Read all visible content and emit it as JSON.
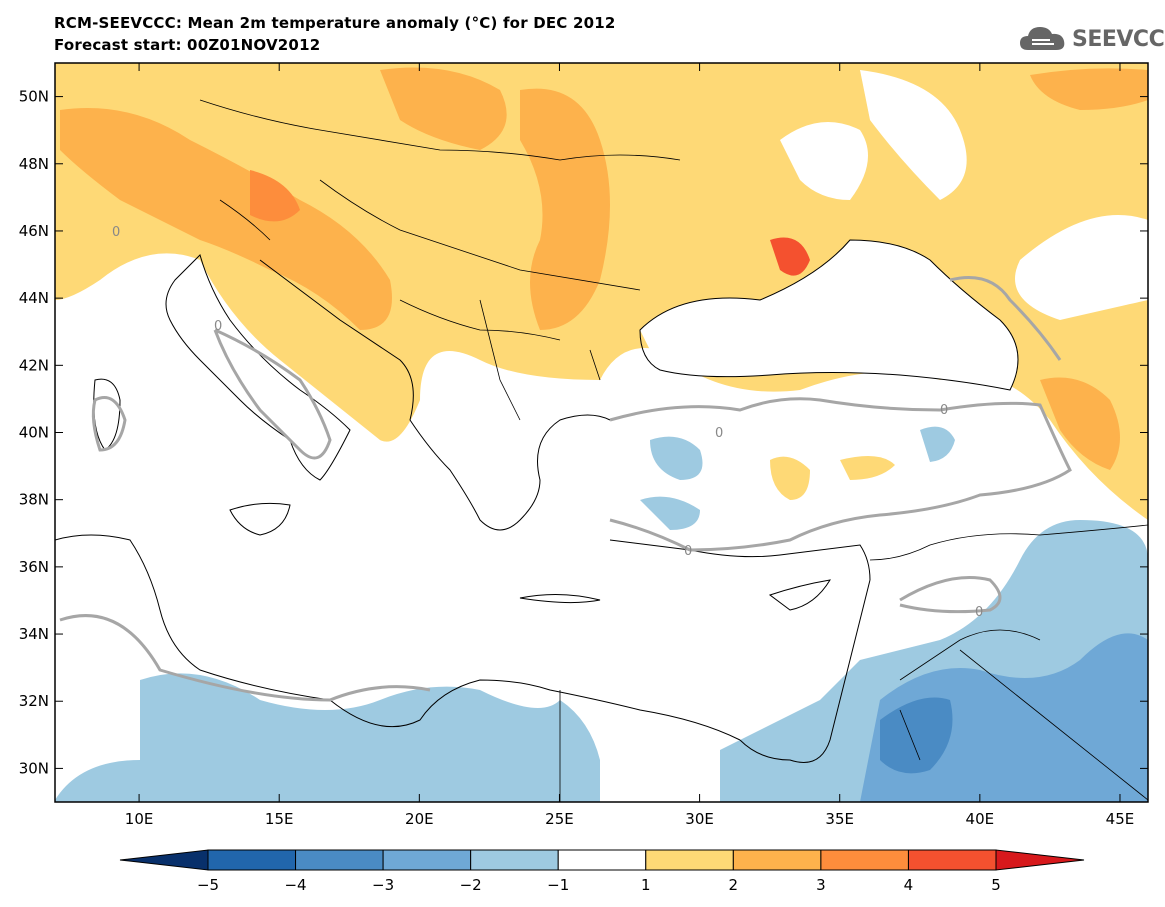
{
  "title": {
    "line1": "RCM-SEEVCCC: Mean 2m temperature anomaly (°C) for DEC 2012",
    "line2": "Forecast start: 00Z01NOV2012"
  },
  "logo": {
    "text": "SEEVCCC",
    "icon": "cloud-icon"
  },
  "chart_data": {
    "type": "heatmap",
    "variable": "Mean 2m temperature anomaly",
    "units": "°C",
    "xlim": [
      7,
      46
    ],
    "ylim": [
      29,
      51
    ],
    "x_ticks": [
      10,
      15,
      20,
      25,
      30,
      35,
      40,
      45
    ],
    "x_tick_labels": [
      "10E",
      "15E",
      "20E",
      "25E",
      "30E",
      "35E",
      "40E",
      "45E"
    ],
    "y_ticks": [
      30,
      32,
      34,
      36,
      38,
      40,
      42,
      44,
      46,
      48,
      50
    ],
    "y_tick_labels": [
      "30N",
      "32N",
      "34N",
      "36N",
      "38N",
      "40N",
      "42N",
      "44N",
      "46N",
      "48N",
      "50N"
    ],
    "contour_label": "0",
    "colorbar": {
      "levels": [
        -5,
        -4,
        -3,
        -2,
        -1,
        1,
        2,
        3,
        4,
        5
      ],
      "labels": [
        "−5",
        "−4",
        "−3",
        "−2",
        "−1",
        "1",
        "2",
        "3",
        "4",
        "5"
      ],
      "colors": [
        "#08306b",
        "#2166ac",
        "#4a8bc4",
        "#6fa8d6",
        "#9ecae1",
        "#ffffff",
        "#fed976",
        "#fdb24c",
        "#fd8d3c",
        "#f4512f",
        "#d7191c"
      ]
    }
  }
}
